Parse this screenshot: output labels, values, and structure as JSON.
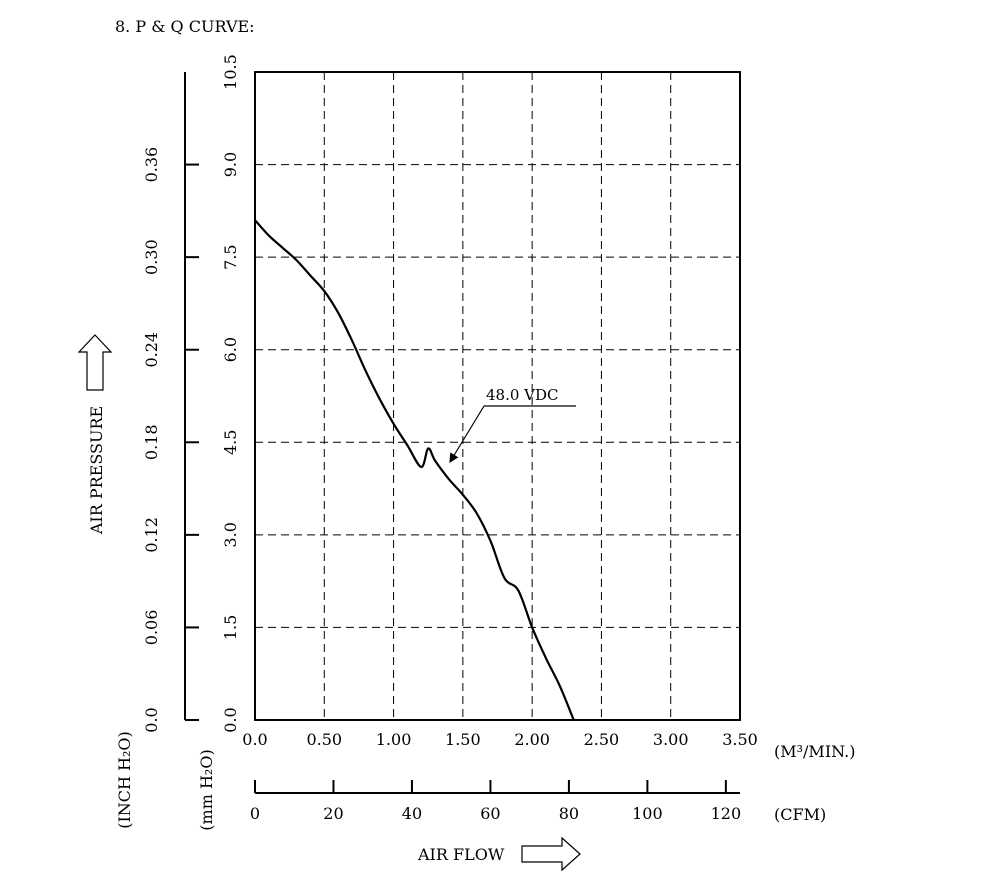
{
  "heading": "8. P & Q CURVE:",
  "chart_data": {
    "type": "line",
    "title": "P & Q CURVE",
    "x": {
      "label": "AIR FLOW",
      "unit": "(M³/MIN.)",
      "ticks": [
        "0.0",
        "0.50",
        "1.00",
        "1.50",
        "2.00",
        "2.50",
        "3.00",
        "3.50"
      ],
      "range": [
        0,
        3.5
      ]
    },
    "x2": {
      "unit": "(CFM)",
      "ticks": [
        "0",
        "20",
        "40",
        "60",
        "80",
        "100",
        "120"
      ],
      "values": [
        0,
        20,
        40,
        60,
        80,
        100,
        120
      ]
    },
    "y": {
      "label": "AIR PRESSURE",
      "unit": "(mm H₂O)",
      "ticks": [
        "0.0",
        "1.5",
        "3.0",
        "4.5",
        "6.0",
        "7.5",
        "9.0",
        "10.5"
      ],
      "range": [
        0,
        10.5
      ]
    },
    "y2": {
      "unit": "(INCH H₂O)",
      "ticks": [
        "0.0",
        "0.06",
        "0.12",
        "0.18",
        "0.24",
        "0.30",
        "0.36"
      ],
      "values": [
        0,
        0.06,
        0.12,
        0.18,
        0.24,
        0.3,
        0.36
      ]
    },
    "grid": true,
    "series": [
      {
        "name": "48.0 VDC",
        "x": [
          0.0,
          0.1,
          0.2,
          0.3,
          0.4,
          0.5,
          0.6,
          0.7,
          0.8,
          0.9,
          1.0,
          1.1,
          1.2,
          1.25,
          1.3,
          1.4,
          1.5,
          1.6,
          1.7,
          1.8,
          1.9,
          2.0,
          2.1,
          2.2,
          2.3
        ],
        "y": [
          8.1,
          7.85,
          7.65,
          7.45,
          7.2,
          6.95,
          6.6,
          6.15,
          5.65,
          5.2,
          4.8,
          4.45,
          4.1,
          4.4,
          4.2,
          3.9,
          3.65,
          3.35,
          2.9,
          2.3,
          2.1,
          1.5,
          1.0,
          0.55,
          0.0
        ]
      }
    ],
    "annotations": [
      {
        "text": "48.0 VDC",
        "target_series": "48.0 VDC"
      }
    ]
  }
}
